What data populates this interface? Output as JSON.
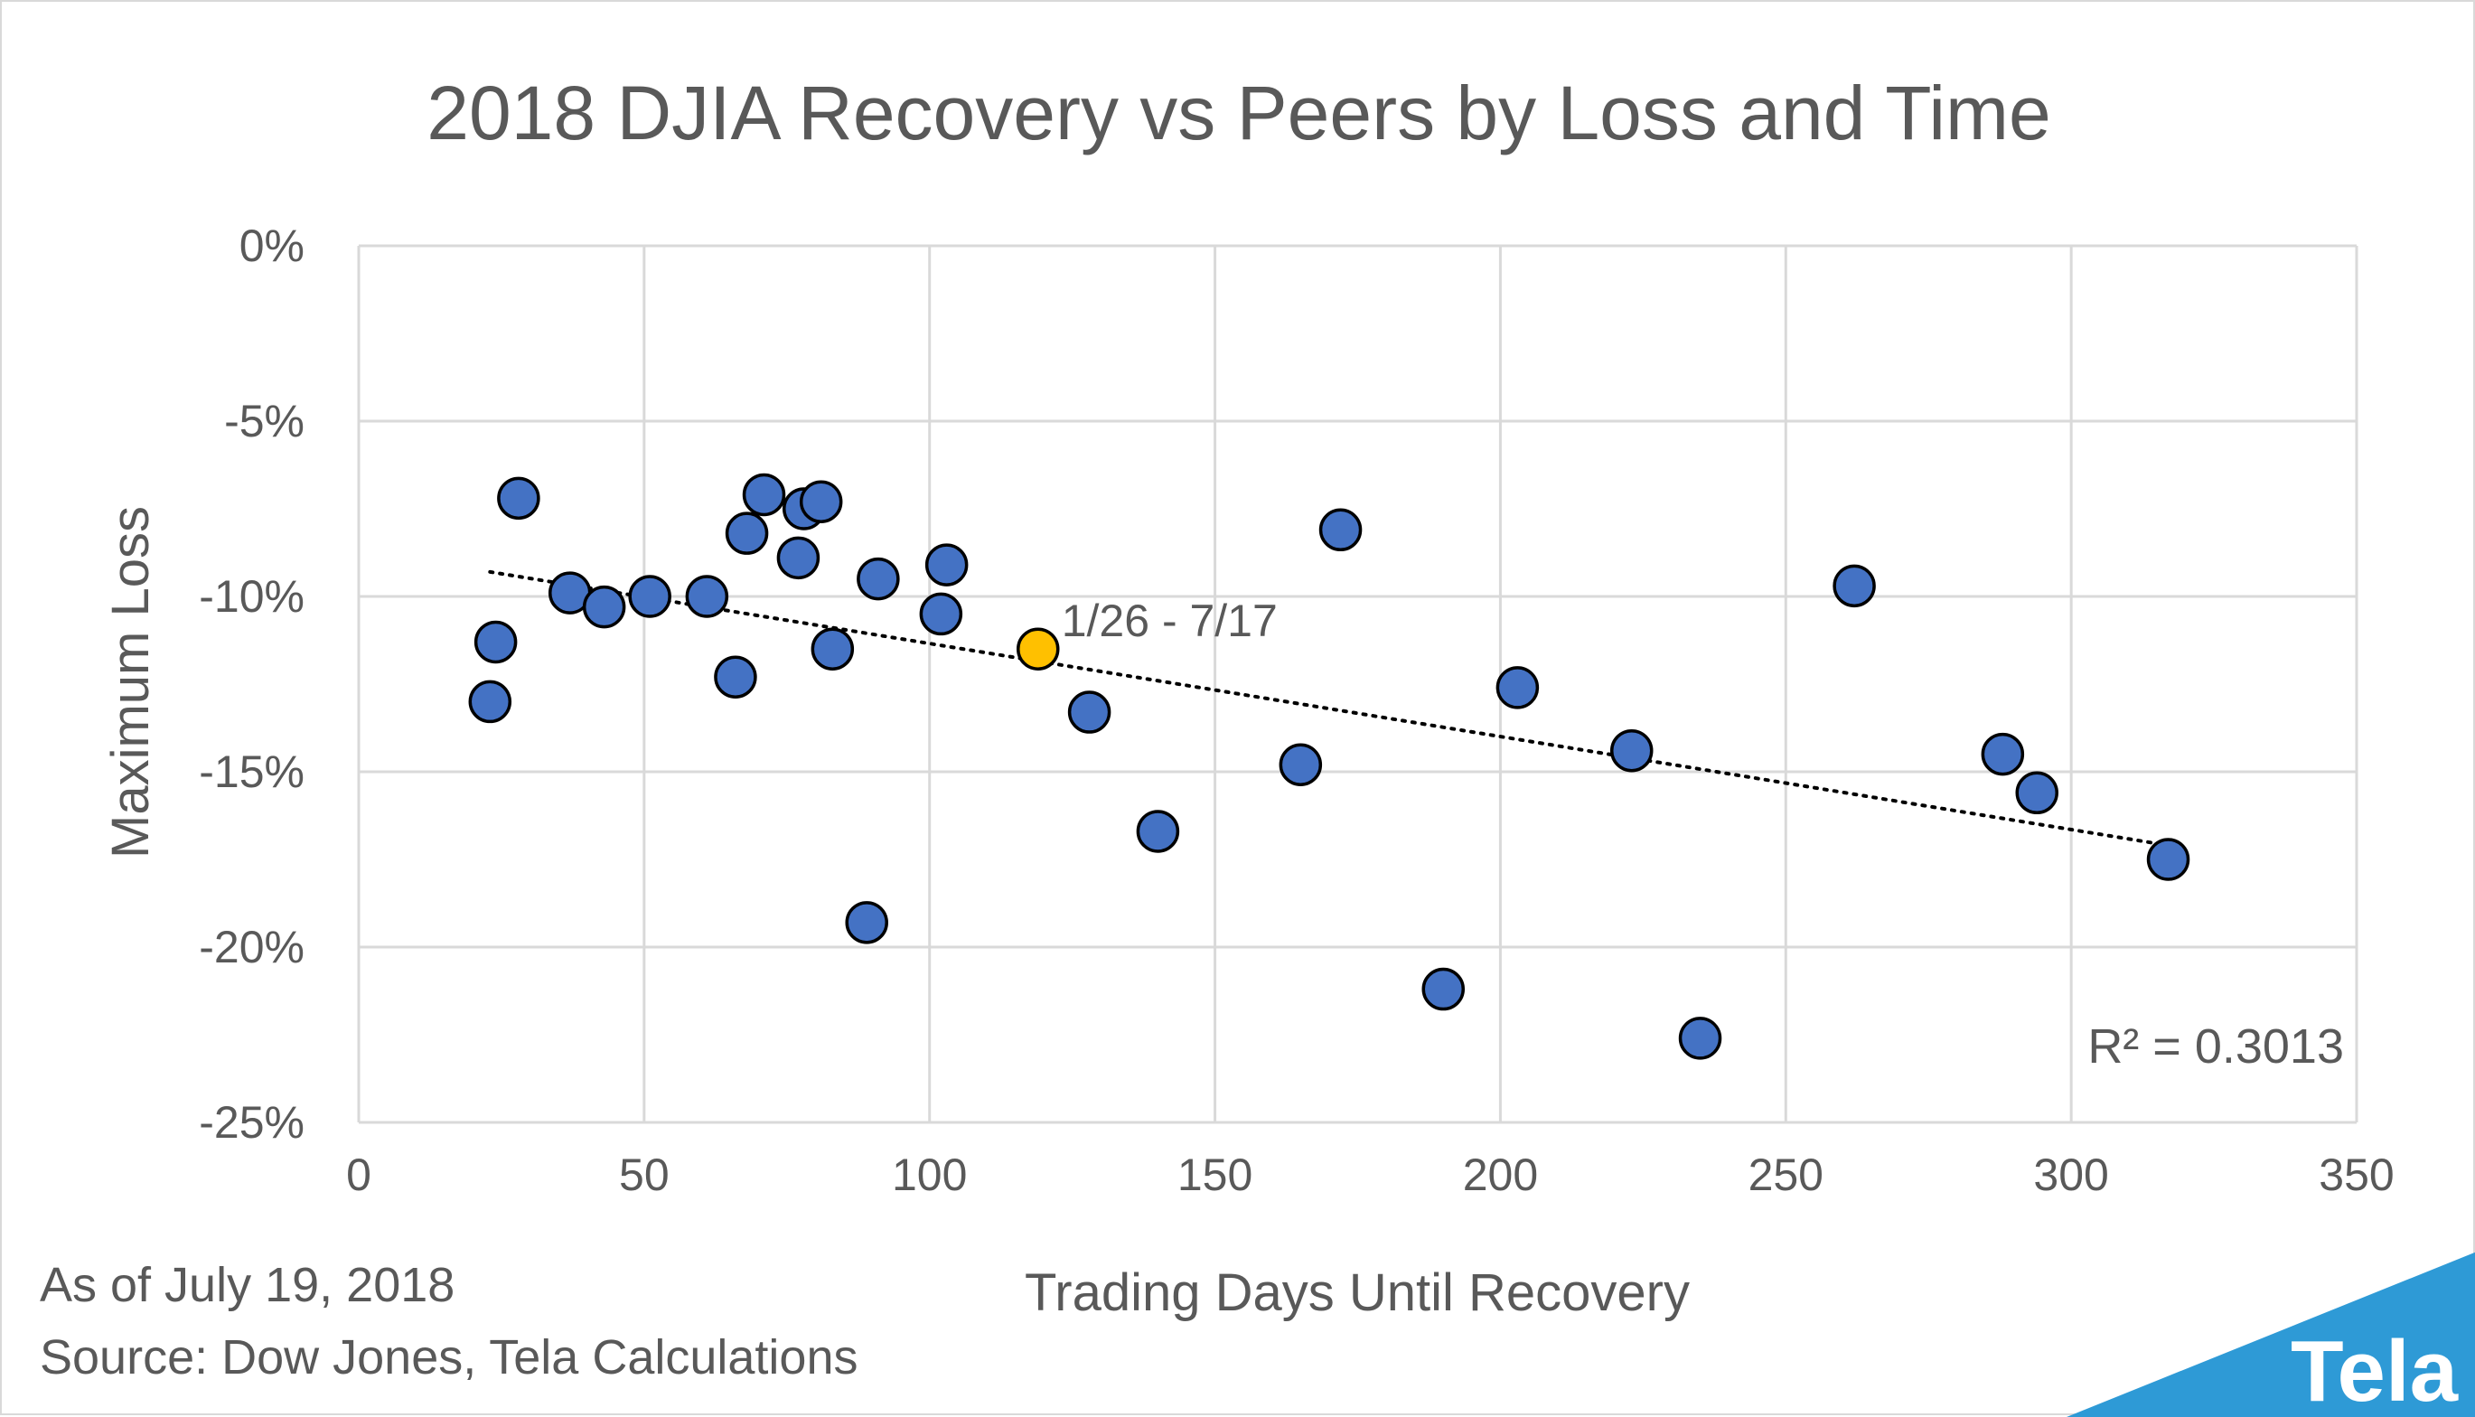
{
  "chart_data": {
    "type": "scatter",
    "title": "2018 DJIA Recovery vs Peers by Loss and Time",
    "xlabel": "Trading Days Until Recovery",
    "ylabel": "Maximum Loss",
    "xlim": [
      0,
      350
    ],
    "ylim": [
      -25,
      0
    ],
    "x_ticks": [
      "0",
      "50",
      "100",
      "150",
      "200",
      "250",
      "300",
      "350"
    ],
    "y_ticks": [
      "0%",
      "-5%",
      "-10%",
      "-15%",
      "-20%",
      "-25%"
    ],
    "grid": true,
    "legend": "none",
    "series": [
      {
        "color": "#4472c4",
        "points": [
          {
            "x": 23,
            "y": -13.0
          },
          {
            "x": 24,
            "y": -11.3
          },
          {
            "x": 28,
            "y": -7.2
          },
          {
            "x": 37,
            "y": -9.9
          },
          {
            "x": 43,
            "y": -10.3
          },
          {
            "x": 51,
            "y": -10.0
          },
          {
            "x": 61,
            "y": -10.0
          },
          {
            "x": 66,
            "y": -12.3
          },
          {
            "x": 68,
            "y": -8.2
          },
          {
            "x": 71,
            "y": -7.1
          },
          {
            "x": 77,
            "y": -8.9
          },
          {
            "x": 78,
            "y": -7.5
          },
          {
            "x": 81,
            "y": -7.3
          },
          {
            "x": 83,
            "y": -11.5
          },
          {
            "x": 89,
            "y": -19.3
          },
          {
            "x": 91,
            "y": -9.5
          },
          {
            "x": 102,
            "y": -10.5
          },
          {
            "x": 103,
            "y": -9.1
          },
          {
            "x": 128,
            "y": -13.3
          },
          {
            "x": 140,
            "y": -16.7
          },
          {
            "x": 165,
            "y": -14.8
          },
          {
            "x": 172,
            "y": -8.1
          },
          {
            "x": 190,
            "y": -21.2
          },
          {
            "x": 203,
            "y": -12.6
          },
          {
            "x": 223,
            "y": -14.4
          },
          {
            "x": 235,
            "y": -22.6
          },
          {
            "x": 262,
            "y": -9.7
          },
          {
            "x": 288,
            "y": -14.5
          },
          {
            "x": 294,
            "y": -15.6
          },
          {
            "x": 317,
            "y": -17.5
          }
        ]
      },
      {
        "color": "#ffc000",
        "points": [
          {
            "x": 119,
            "y": -11.5
          }
        ]
      }
    ],
    "highlight_label": "1/26 - 7/17",
    "trendline": {
      "type": "linear",
      "style": "dotted",
      "x_range": [
        23,
        317
      ],
      "y_range": [
        -9.3,
        -17.1
      ],
      "r_squared_label": "R² = 0.3013"
    }
  },
  "footnotes": {
    "as_of": "As of July 19, 2018",
    "source": "Source: Dow Jones, Tela Calculations"
  },
  "brand": {
    "name": "Tela",
    "color": "#2e9ad6"
  },
  "colors": {
    "marker_blue": "#4472c4",
    "marker_highlight": "#ffc000",
    "gridline": "#d9d9d9",
    "text": "#595959"
  }
}
